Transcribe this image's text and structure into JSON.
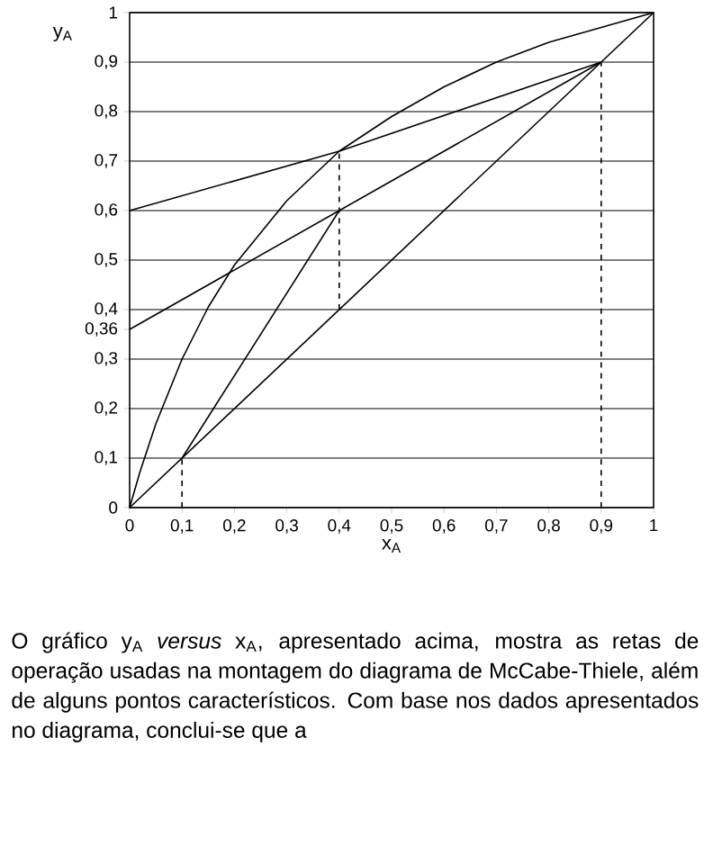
{
  "chart_data": {
    "type": "line",
    "xlabel": "x$_{A}$",
    "ylabel": "y$_{A}$",
    "xlim": [
      0,
      1
    ],
    "ylim": [
      0,
      1
    ],
    "xticks": [
      0,
      {
        "value": 0.1,
        "label": "0,1"
      },
      {
        "value": 0.2,
        "label": "0,2"
      },
      {
        "value": 0.3,
        "label": "0,3"
      },
      {
        "value": 0.4,
        "label": "0,4"
      },
      {
        "value": 0.5,
        "label": "0,5"
      },
      {
        "value": 0.6,
        "label": "0,6"
      },
      {
        "value": 0.7,
        "label": "0,7"
      },
      {
        "value": 0.8,
        "label": "0,8"
      },
      {
        "value": 0.9,
        "label": "0,9"
      },
      1
    ],
    "yticks": [
      0,
      {
        "value": 0.1,
        "label": "0,1"
      },
      {
        "value": 0.2,
        "label": "0,2"
      },
      {
        "value": 0.3,
        "label": "0,3"
      },
      {
        "value": 0.36,
        "label": "0,36"
      },
      {
        "value": 0.4,
        "label": "0,4"
      },
      {
        "value": 0.5,
        "label": "0,5"
      },
      {
        "value": 0.6,
        "label": "0,6"
      },
      {
        "value": 0.7,
        "label": "0,7"
      },
      {
        "value": 0.8,
        "label": "0,8"
      },
      {
        "value": 0.9,
        "label": "0,9"
      },
      1
    ],
    "grid": "y",
    "marker": "none",
    "series": [
      {
        "color": "#000000",
        "line_style": "solid",
        "x": [
          0,
          0.02,
          0.05,
          0.1,
          0.15,
          0.2,
          0.3,
          0.4,
          0.5,
          0.6,
          0.7,
          0.8,
          0.9,
          1
        ],
        "values": [
          0,
          0.073,
          0.169,
          0.3,
          0.405,
          0.49,
          0.62,
          0.72,
          0.79,
          0.85,
          0.9,
          0.94,
          0.97,
          1
        ]
      },
      {
        "color": "#000000",
        "line_style": "solid",
        "x": [
          0,
          1
        ],
        "values": [
          0,
          1
        ]
      },
      {
        "color": "#000000",
        "line_style": "solid",
        "x": [
          0,
          0.4,
          0.9
        ],
        "values": [
          0.6,
          0.72,
          0.9
        ]
      },
      {
        "color": "#000000",
        "line_style": "solid",
        "x": [
          0,
          0.9
        ],
        "values": [
          0.36,
          0.9
        ]
      },
      {
        "color": "#000000",
        "line_style": "solid",
        "x": [
          0.1,
          0.4
        ],
        "values": [
          0.1,
          0.6
        ]
      },
      {
        "color": "#000000",
        "line_style": "dashed",
        "x": [
          0.1,
          0.1
        ],
        "values": [
          0,
          0.1
        ]
      },
      {
        "color": "#000000",
        "line_style": "dashed",
        "x": [
          0.4,
          0.4
        ],
        "values": [
          0.4,
          0.72
        ]
      },
      {
        "color": "#000000",
        "line_style": "dashed",
        "x": [
          0.9,
          0.9
        ],
        "values": [
          0,
          0.9
        ]
      }
    ],
    "annotations": [
      "O gráfico y$_{A}$ *versus* x$_{A}$, apresentado acima, mostra as retas de operação usadas na montagem do diagrama de McCabe-Thiele, além de alguns pontos característicos. Com base nos dados apresentados no diagrama, conclui-se que a"
    ]
  }
}
